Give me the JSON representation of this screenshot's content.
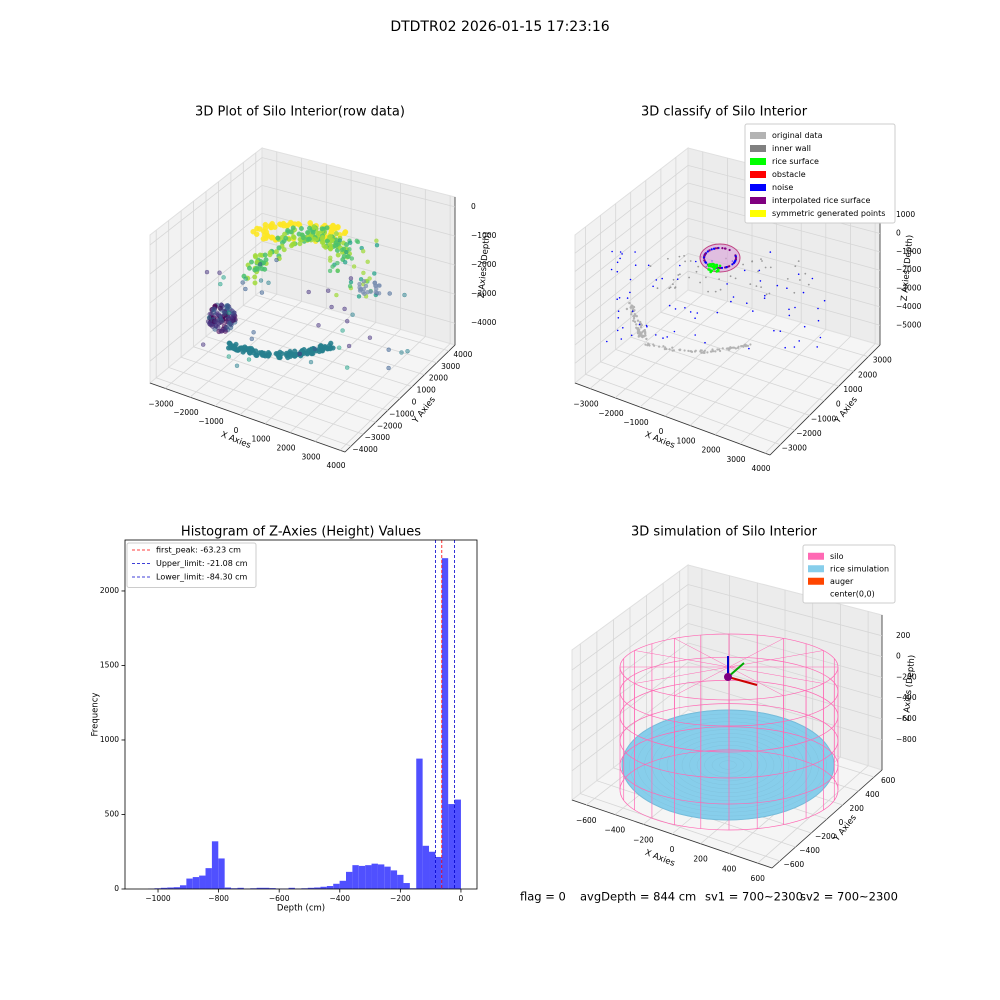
{
  "title": "DTDTR02 2026-01-15 17:23:16",
  "chart_data": [
    {
      "type": "scatter3d",
      "title": "3D Plot of Silo Interior(row data)",
      "xlabel": "X Axies",
      "ylabel": "Y Axies",
      "zlabel": "Z Axies (Depth)",
      "xlim": [
        -3600,
        4200
      ],
      "ylim": [
        -4500,
        4500
      ],
      "zlim": [
        -4750,
        340
      ],
      "xticks": [
        {
          "value": -3000,
          "label": "−3000"
        },
        {
          "value": -2000,
          "label": "−2000"
        },
        {
          "value": -1000,
          "label": "−1000"
        },
        0,
        1000,
        2000,
        3000,
        4000
      ],
      "yticks": [
        {
          "value": -4000,
          "label": "−4000"
        },
        {
          "value": -3000,
          "label": "−3000"
        },
        {
          "value": -2000,
          "label": "−2000"
        },
        {
          "value": -1000,
          "label": "−1000"
        },
        0,
        1000,
        2000,
        3000,
        4000
      ],
      "zticks": [
        {
          "value": -4000,
          "label": "−4000"
        },
        {
          "value": -3000,
          "label": "−3000"
        },
        {
          "value": -2000,
          "label": "−2000"
        },
        {
          "value": -1000,
          "label": "−1000"
        },
        0
      ]
    },
    {
      "type": "classify3d",
      "title": "3D classify of Silo Interior",
      "xlabel": "X Axies",
      "ylabel": "Y Axies",
      "zlabel": "Z Axies (Depth)",
      "xlim": [
        -3600,
        4200
      ],
      "ylim": [
        -3700,
        3800
      ],
      "zlim": [
        -6075,
        1990
      ],
      "xticks": [
        {
          "value": -3000,
          "label": "−3000"
        },
        {
          "value": -2000,
          "label": "−2000"
        },
        {
          "value": -1000,
          "label": "−1000"
        },
        0,
        1000,
        2000,
        3000,
        4000
      ],
      "yticks": [
        {
          "value": -3000,
          "label": "−3000"
        },
        {
          "value": -2000,
          "label": "−2000"
        },
        {
          "value": -1000,
          "label": "−1000"
        },
        0,
        1000,
        2000,
        3000
      ],
      "zticks": [
        {
          "value": -5000,
          "label": "−5000"
        },
        {
          "value": -4000,
          "label": "−4000"
        },
        {
          "value": -3000,
          "label": "−3000"
        },
        {
          "value": -2000,
          "label": "−2000"
        },
        {
          "value": -1000,
          "label": "−1000"
        },
        0,
        1000
      ],
      "legend": [
        {
          "name": "original data",
          "color": "#b3b3b3"
        },
        {
          "name": "inner wall",
          "color": "#808080"
        },
        {
          "name": "rice surface",
          "color": "#00ff00"
        },
        {
          "name": "obstacle",
          "color": "#ff0000"
        },
        {
          "name": "noise",
          "color": "#0000ff"
        },
        {
          "name": "interpolated rice surface",
          "color": "#800080"
        },
        {
          "name": "symmetric generated points",
          "color": "#ffff00"
        }
      ]
    },
    {
      "type": "histogram",
      "title": "Histogram of Z-Axies (Height) Values",
      "xlabel": "Depth (cm)",
      "ylabel": "Frequency",
      "color": "#5050ff",
      "bins": [
        -1054,
        -1032.92,
        -1011.84,
        -990.76,
        -969.68,
        -948.6,
        -927.52,
        -906.44,
        -885.36,
        -864.28,
        -843.2,
        -822.12,
        -801.04,
        -779.96,
        -758.88,
        -737.8,
        -716.72,
        -695.64,
        -674.56,
        -653.48,
        -632.4,
        -611.32,
        -590.24,
        -569.16,
        -548.08,
        -527,
        -505.92,
        -484.84,
        -463.76,
        -442.68,
        -421.6,
        -400.52,
        -379.44,
        -358.36,
        -337.28,
        -316.2,
        -295.12,
        -274.04,
        -252.96,
        -231.88,
        -210.8,
        -189.72,
        -168.64,
        -147.56,
        -126.48,
        -105.4,
        -84.32,
        -63.24,
        -42.16,
        -21.08,
        0
      ],
      "values": [
        0,
        2,
        5,
        8,
        10,
        12,
        25,
        70,
        80,
        90,
        140,
        320,
        205,
        10,
        5,
        8,
        3,
        5,
        8,
        8,
        6,
        3,
        3,
        8,
        3,
        5,
        8,
        10,
        15,
        20,
        35,
        55,
        115,
        160,
        155,
        160,
        170,
        165,
        150,
        125,
        95,
        40,
        5,
        875,
        290,
        250,
        215,
        2220,
        570,
        600
      ],
      "xlim": [
        -1109,
        53
      ],
      "ylim": [
        0,
        2342
      ],
      "xticks": [
        {
          "value": -1000,
          "label": "−1000"
        },
        {
          "value": -800,
          "label": "−800"
        },
        {
          "value": -600,
          "label": "−600"
        },
        {
          "value": -400,
          "label": "−400"
        },
        {
          "value": -200,
          "label": "−200"
        },
        0
      ],
      "yticks": [
        0,
        500,
        1000,
        1500,
        2000
      ],
      "legend": "upper left",
      "vlines": [
        {
          "label": "first_peak: -63.23 cm",
          "value": -63.23,
          "color": "#ff0000"
        },
        {
          "label": "Upper_limit: -21.08 cm",
          "value": -21.08,
          "color": "#0000cc"
        },
        {
          "label": "Lower_limit: -84.30 cm",
          "value": -84.3,
          "color": "#0000cc"
        }
      ]
    },
    {
      "type": "simulation3d",
      "title": "3D simulation of Silo Interior",
      "xlabel": "X Axies",
      "ylabel": "Y Axies",
      "zlabel": "Z Axies (Depth)",
      "xlim": [
        -700,
        700
      ],
      "ylim": [
        -700,
        700
      ],
      "zlim": [
        -1090,
        400
      ],
      "xticks": [
        {
          "value": -600,
          "label": "−600"
        },
        {
          "value": -400,
          "label": "−400"
        },
        {
          "value": -200,
          "label": "−200"
        },
        0,
        200,
        400,
        600
      ],
      "yticks": [
        {
          "value": -600,
          "label": "−600"
        },
        {
          "value": -400,
          "label": "−400"
        },
        {
          "value": -200,
          "label": "−200"
        },
        0,
        200,
        400,
        600
      ],
      "zticks": [
        {
          "value": -800,
          "label": "−800"
        },
        {
          "value": -600,
          "label": "−600"
        },
        {
          "value": -400,
          "label": "−400"
        },
        {
          "value": -200,
          "label": "−200"
        },
        0,
        200
      ],
      "legend": [
        {
          "name": "silo",
          "color": "#ff69b4"
        },
        {
          "name": "rice simulation",
          "color": "#87ceeb"
        },
        {
          "name": "auger",
          "color": "#ff4500"
        },
        {
          "name": "center(0,0)"
        }
      ]
    }
  ],
  "status": [
    "flag = 0",
    "avgDepth = 844 cm",
    "sv1 = 700~2300",
    "sv2 = 700~2300"
  ]
}
